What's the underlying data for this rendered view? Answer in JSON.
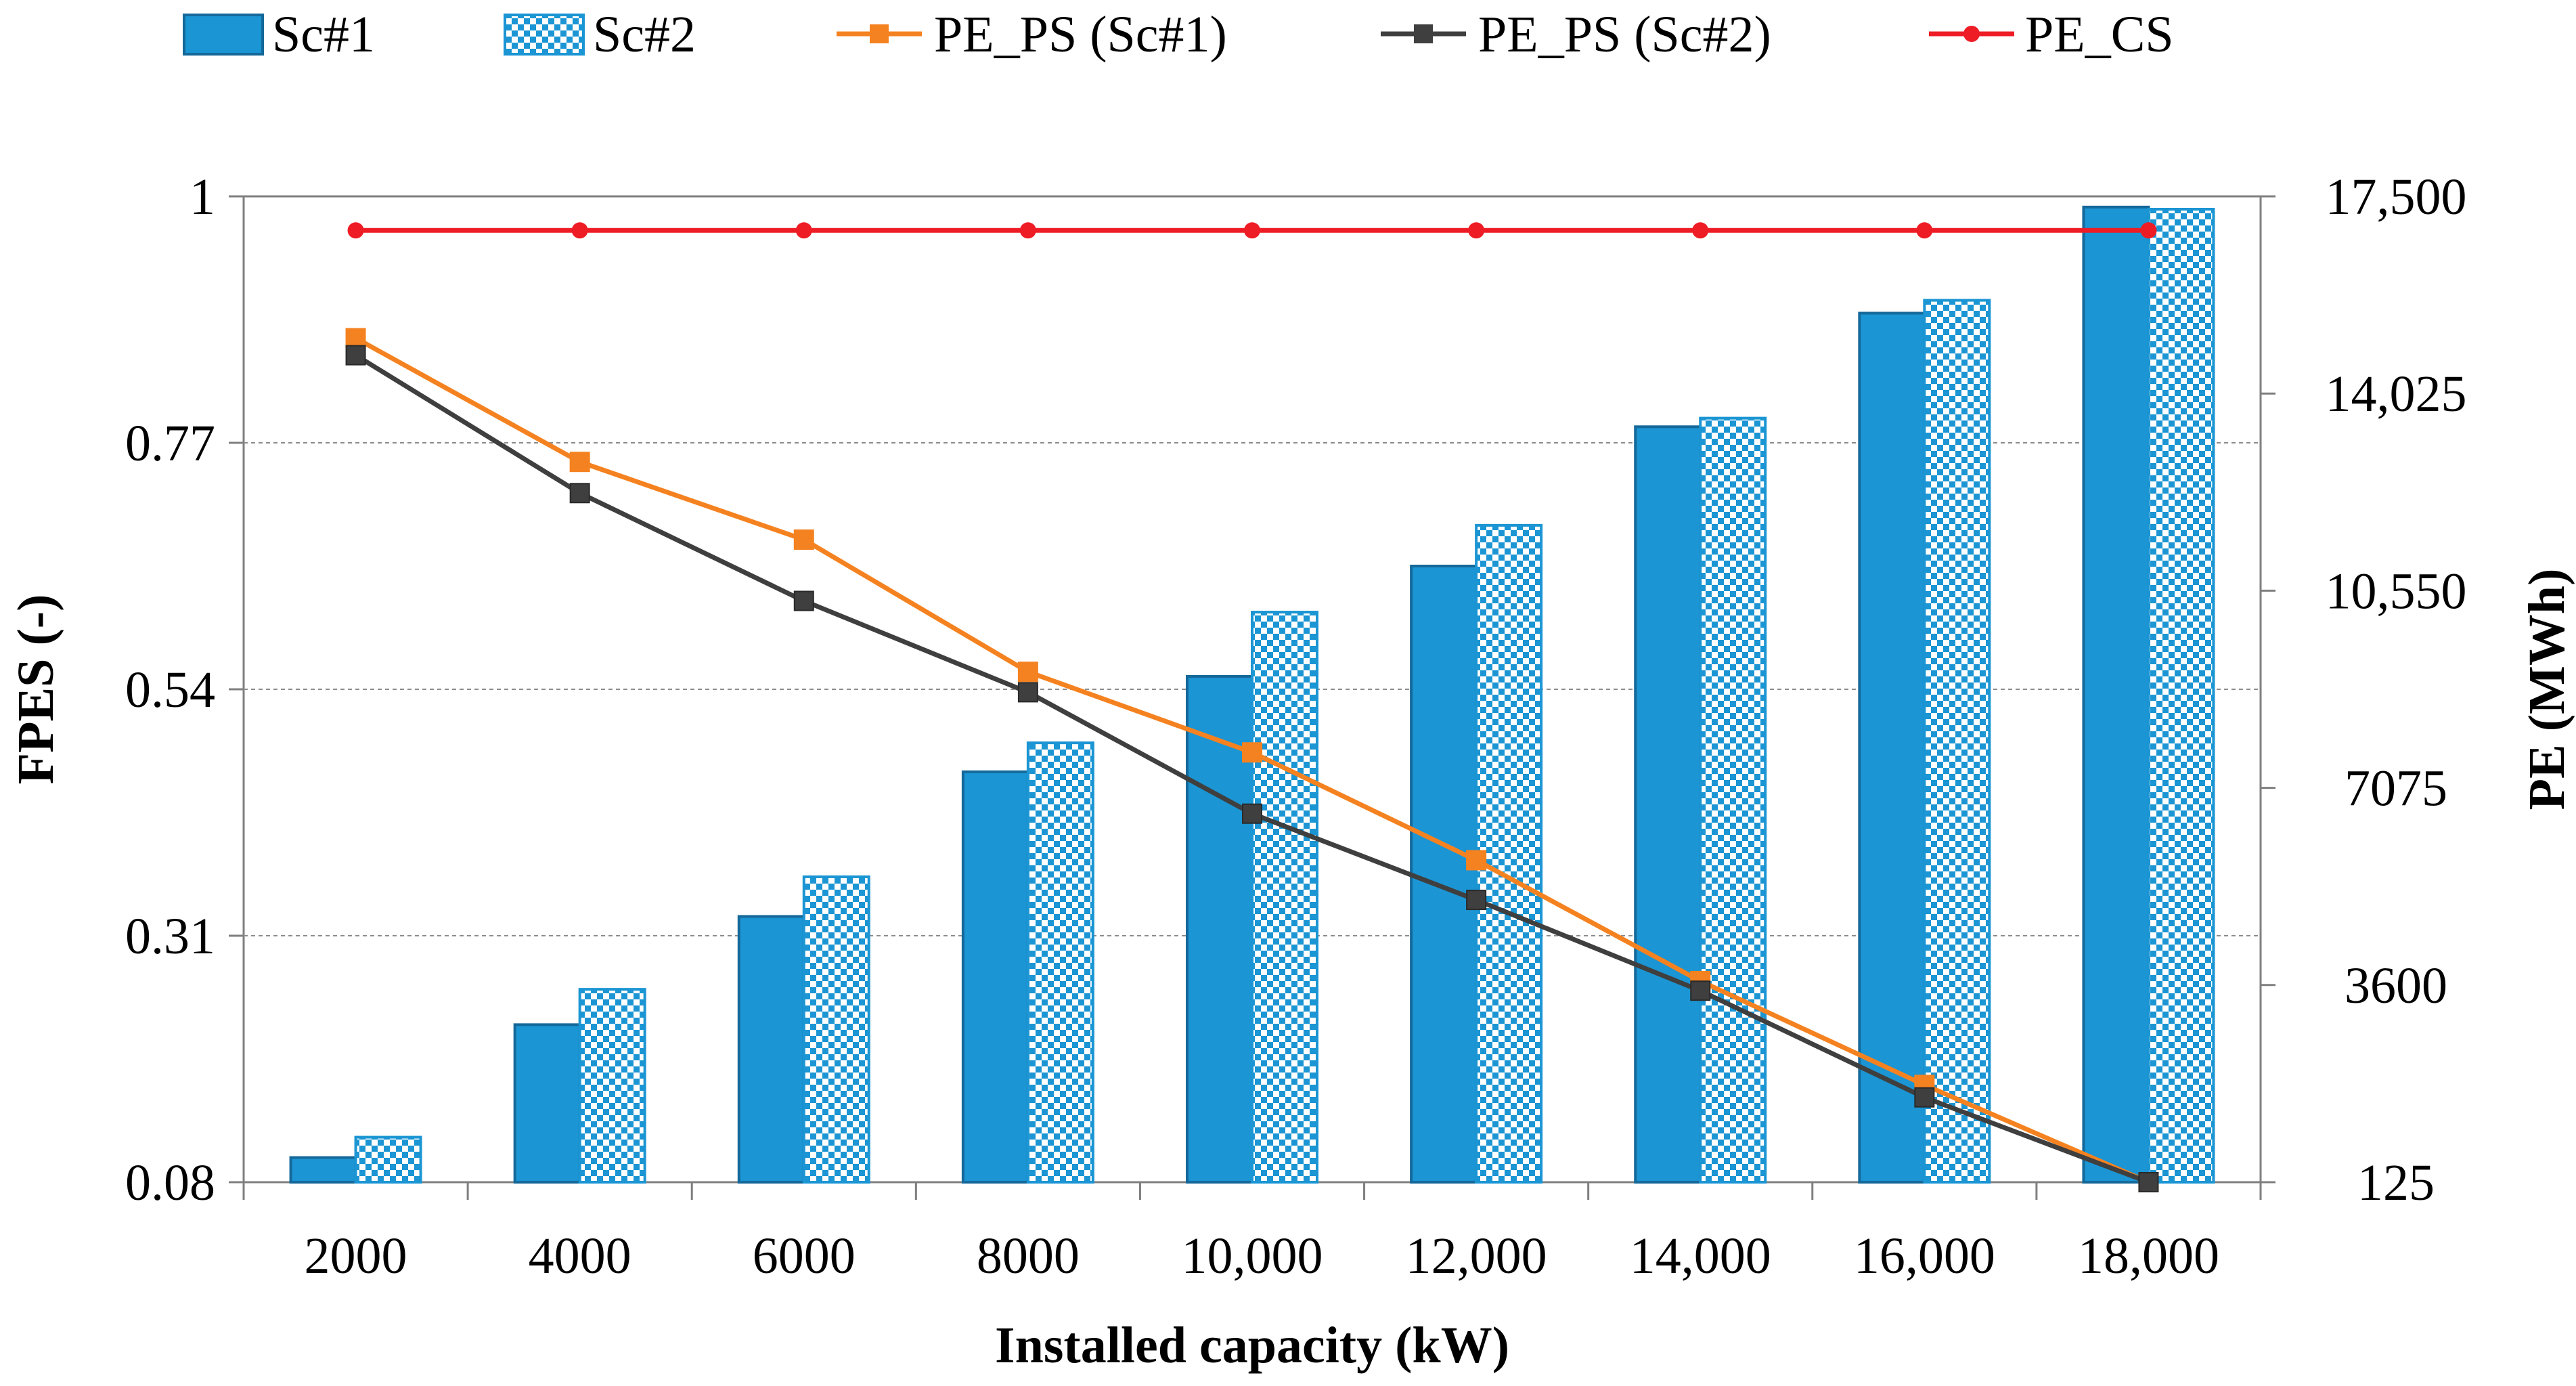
{
  "chart_data": {
    "type": "bar",
    "title": "",
    "xlabel": "Installed capacity (kW)",
    "ylabel": "FPES (-)",
    "y2label": "PE (MWh)",
    "categories": [
      "2000",
      "4000",
      "6000",
      "8000",
      "10,000",
      "12,000",
      "14,000",
      "16,000",
      "18,000"
    ],
    "ylim": [
      0.08,
      1
    ],
    "y2lim": [
      125,
      17500
    ],
    "yticks": [
      "0.08",
      "0.31",
      "0.54",
      "0.77",
      "1"
    ],
    "y2ticks": [
      "125",
      "3600",
      "7075",
      "10,550",
      "14,025",
      "17,500"
    ],
    "grid": true,
    "legend_position": "top",
    "series": [
      {
        "name": "Sc#1",
        "type": "bar",
        "axis": "left",
        "color": "#1b95d3",
        "values": [
          0.103,
          0.227,
          0.328,
          0.463,
          0.552,
          0.655,
          0.785,
          0.891,
          0.99
        ]
      },
      {
        "name": "Sc#2",
        "type": "bar",
        "axis": "left",
        "pattern": "checker",
        "color": "#1b95d3",
        "values": [
          0.122,
          0.26,
          0.365,
          0.49,
          0.612,
          0.693,
          0.793,
          0.903,
          0.988
        ]
      },
      {
        "name": "PE_PS (Sc#1)",
        "type": "line",
        "axis": "right",
        "marker": "square",
        "color": "#f58220",
        "values": [
          15000,
          12820,
          11450,
          9120,
          7700,
          5800,
          3670,
          1840,
          125
        ]
      },
      {
        "name": "PE_PS (Sc#2)",
        "type": "line",
        "axis": "right",
        "marker": "square",
        "color": "#3f3f3f",
        "values": [
          14700,
          12270,
          10370,
          8760,
          6620,
          5100,
          3500,
          1620,
          125
        ]
      },
      {
        "name": "PE_CS",
        "type": "line",
        "axis": "right",
        "marker": "circle",
        "color": "#ee1c25",
        "values": [
          16900,
          16900,
          16900,
          16900,
          16900,
          16900,
          16900,
          16900,
          16900
        ]
      }
    ]
  }
}
